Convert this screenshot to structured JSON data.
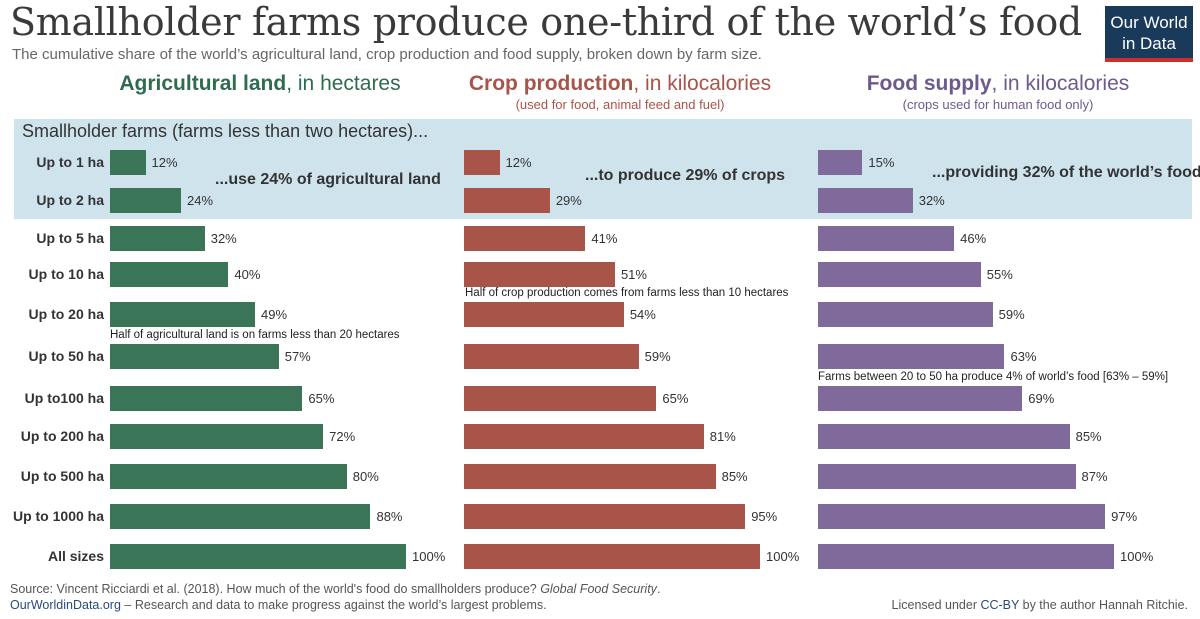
{
  "title": "Smallholder farms produce one-third of the world’s food",
  "subtitle": "The cumulative share of the world’s agricultural land, crop production and food supply, broken down by farm size.",
  "logo": {
    "line1": "Our World",
    "line2": "in Data"
  },
  "highlight_label": "Smallholder farms (farms less than two hectares)...",
  "colors": {
    "land": "#3b7558",
    "crop": "#a95449",
    "food": "#7f6a9b",
    "highlight": "#cfe3ec"
  },
  "chart_data": {
    "type": "bar",
    "orientation": "horizontal",
    "categories": [
      "Up to 1 ha",
      "Up to 2 ha",
      "Up to 5 ha",
      "Up to 10 ha",
      "Up to 20 ha",
      "Up to 50 ha",
      "Up to100 ha",
      "Up to 200 ha",
      "Up to 500 ha",
      "Up to 1000 ha",
      "All sizes"
    ],
    "xlim": [
      0,
      100
    ],
    "unit": "%",
    "series": [
      {
        "key": "land",
        "title_bold": "Agricultural land",
        "title_rest": ", in hectares",
        "note": "",
        "callout": "...use 24% of agricultural land",
        "annotation": "Half of agricultural land is on farms less than 20 hectares",
        "values": [
          12,
          24,
          32,
          40,
          49,
          57,
          65,
          72,
          80,
          88,
          100
        ]
      },
      {
        "key": "crop",
        "title_bold": "Crop production",
        "title_rest": ", in kilocalories",
        "note": "(used for food, animal feed and fuel)",
        "callout": "...to produce 29% of crops",
        "annotation": "Half of crop production comes from farms less than 10 hectares",
        "values": [
          12,
          29,
          41,
          51,
          54,
          59,
          65,
          81,
          85,
          95,
          100
        ]
      },
      {
        "key": "food",
        "title_bold": "Food supply",
        "title_rest": ", in kilocalories",
        "note": "(crops used for human food only)",
        "callout": "...providing 32% of the world’s food",
        "annotation": "Farms between 20 to 50 ha  produce 4% of world’s food [63% – 59%]",
        "values": [
          15,
          32,
          46,
          55,
          59,
          63,
          69,
          85,
          87,
          97,
          100
        ]
      }
    ]
  },
  "footer": {
    "source_prefix": "Source: Vincent Ricciardi et al. (2018). How much of the world's food do smallholders produce? ",
    "source_journal": "Global Food Security",
    "source_suffix": ".",
    "site": "OurWorldinData.org",
    "tagline": " – Research and data to make progress against the world’s largest problems.",
    "license_prefix": "Licensed under ",
    "license_link": "CC-BY",
    "license_suffix": " by the author Hannah Ritchie."
  }
}
